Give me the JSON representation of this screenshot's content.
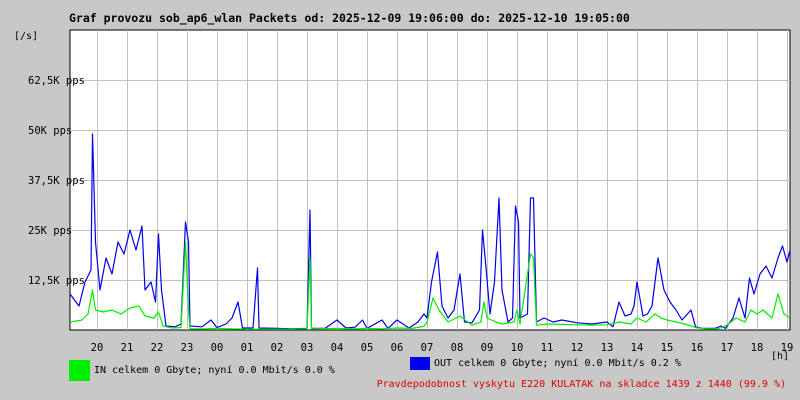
{
  "title": "Graf provozu sob_ap6_wlan Packets od: 2025-12-09 19:06:00 do: 2025-12-10 19:05:00",
  "y_unit": "[/s]",
  "x_unit": "[h]",
  "legend": {
    "in": {
      "label": "IN celkem 0 Gbyte; nyní   0.0 Mbit/s 0.0 %",
      "color": "#00ee00"
    },
    "out": {
      "label": "OUT celkem 0 Gbyte; nyní   0.0 Mbit/s 0.2 %",
      "color": "#0000ee"
    }
  },
  "footer": "Pravdepodobnost vyskytu E220 KULATAK na skladce 1439 z 1440 (99.9 %)",
  "chart_data": {
    "type": "line",
    "title": "Graf provozu sob_ap6_wlan Packets od: 2025-12-09 19:06:00 do: 2025-12-10 19:05:00",
    "xlabel": "[h]",
    "ylabel": "[/s]",
    "xlim": [
      19.1,
      43.1
    ],
    "ylim": [
      0,
      75000
    ],
    "grid": true,
    "x_ticks": [
      {
        "x": 20,
        "label": "20"
      },
      {
        "x": 21,
        "label": "21"
      },
      {
        "x": 22,
        "label": "22"
      },
      {
        "x": 23,
        "label": "23"
      },
      {
        "x": 24,
        "label": "00"
      },
      {
        "x": 25,
        "label": "01"
      },
      {
        "x": 26,
        "label": "02"
      },
      {
        "x": 27,
        "label": "03"
      },
      {
        "x": 28,
        "label": "04"
      },
      {
        "x": 29,
        "label": "05"
      },
      {
        "x": 30,
        "label": "06"
      },
      {
        "x": 31,
        "label": "07"
      },
      {
        "x": 32,
        "label": "08"
      },
      {
        "x": 33,
        "label": "09"
      },
      {
        "x": 34,
        "label": "10"
      },
      {
        "x": 35,
        "label": "11"
      },
      {
        "x": 36,
        "label": "12"
      },
      {
        "x": 37,
        "label": "13"
      },
      {
        "x": 38,
        "label": "14"
      },
      {
        "x": 39,
        "label": "15"
      },
      {
        "x": 40,
        "label": "16"
      },
      {
        "x": 41,
        "label": "17"
      },
      {
        "x": 42,
        "label": "18"
      },
      {
        "x": 43,
        "label": "19"
      }
    ],
    "y_ticks": [
      {
        "y": 12500,
        "label": "12,5K pps"
      },
      {
        "y": 25000,
        "label": "25K pps"
      },
      {
        "y": 37500,
        "label": "37,5K pps"
      },
      {
        "y": 50000,
        "label": "50K pps"
      },
      {
        "y": 62500,
        "label": "62,5K pps"
      }
    ],
    "series": [
      {
        "name": "OUT",
        "color": "#0000ee",
        "points": [
          [
            19.1,
            9000
          ],
          [
            19.4,
            6000
          ],
          [
            19.6,
            12000
          ],
          [
            19.8,
            15000
          ],
          [
            19.85,
            49000
          ],
          [
            19.95,
            22000
          ],
          [
            20.1,
            10000
          ],
          [
            20.3,
            18000
          ],
          [
            20.5,
            14000
          ],
          [
            20.7,
            22000
          ],
          [
            20.9,
            19000
          ],
          [
            21.1,
            25000
          ],
          [
            21.3,
            20000
          ],
          [
            21.5,
            26000
          ],
          [
            21.6,
            10000
          ],
          [
            21.8,
            12000
          ],
          [
            21.95,
            7000
          ],
          [
            22.05,
            24000
          ],
          [
            22.15,
            10000
          ],
          [
            22.3,
            1000
          ],
          [
            22.6,
            800
          ],
          [
            22.8,
            1500
          ],
          [
            22.95,
            27000
          ],
          [
            23.05,
            22000
          ],
          [
            23.1,
            1000
          ],
          [
            23.5,
            800
          ],
          [
            23.8,
            2500
          ],
          [
            24.0,
            600
          ],
          [
            24.3,
            1500
          ],
          [
            24.5,
            3000
          ],
          [
            24.7,
            7000
          ],
          [
            24.85,
            500
          ],
          [
            25.2,
            500
          ],
          [
            25.35,
            15500
          ],
          [
            25.4,
            500
          ],
          [
            26.0,
            400
          ],
          [
            26.5,
            300
          ],
          [
            27.0,
            400
          ],
          [
            27.1,
            30000
          ],
          [
            27.15,
            400
          ],
          [
            27.6,
            400
          ],
          [
            28.0,
            2500
          ],
          [
            28.3,
            500
          ],
          [
            28.6,
            700
          ],
          [
            28.85,
            2500
          ],
          [
            29.0,
            400
          ],
          [
            29.5,
            2500
          ],
          [
            29.7,
            400
          ],
          [
            30.0,
            2500
          ],
          [
            30.4,
            500
          ],
          [
            30.7,
            2000
          ],
          [
            30.9,
            4000
          ],
          [
            31.0,
            3000
          ],
          [
            31.15,
            12000
          ],
          [
            31.35,
            19500
          ],
          [
            31.5,
            6000
          ],
          [
            31.7,
            3000
          ],
          [
            31.9,
            5000
          ],
          [
            32.1,
            14000
          ],
          [
            32.25,
            2000
          ],
          [
            32.5,
            1800
          ],
          [
            32.75,
            5000
          ],
          [
            32.85,
            25000
          ],
          [
            32.95,
            17000
          ],
          [
            33.1,
            4000
          ],
          [
            33.25,
            12000
          ],
          [
            33.4,
            33000
          ],
          [
            33.5,
            10000
          ],
          [
            33.7,
            2000
          ],
          [
            33.85,
            3000
          ],
          [
            33.95,
            31000
          ],
          [
            34.05,
            27000
          ],
          [
            34.1,
            3000
          ],
          [
            34.35,
            4000
          ],
          [
            34.45,
            33000
          ],
          [
            34.55,
            33000
          ],
          [
            34.65,
            2000
          ],
          [
            34.9,
            3000
          ],
          [
            35.2,
            2000
          ],
          [
            35.5,
            2500
          ],
          [
            36.0,
            1800
          ],
          [
            36.5,
            1500
          ],
          [
            37.0,
            2000
          ],
          [
            37.2,
            800
          ],
          [
            37.4,
            7000
          ],
          [
            37.6,
            3500
          ],
          [
            37.8,
            4000
          ],
          [
            37.9,
            6000
          ],
          [
            38.0,
            12000
          ],
          [
            38.2,
            3500
          ],
          [
            38.35,
            4000
          ],
          [
            38.5,
            6000
          ],
          [
            38.7,
            18000
          ],
          [
            38.9,
            10000
          ],
          [
            39.1,
            7000
          ],
          [
            39.3,
            5000
          ],
          [
            39.5,
            2500
          ],
          [
            39.8,
            5000
          ],
          [
            39.95,
            800
          ],
          [
            40.2,
            400
          ],
          [
            40.6,
            400
          ],
          [
            40.8,
            1000
          ],
          [
            40.95,
            400
          ],
          [
            41.2,
            3000
          ],
          [
            41.4,
            8000
          ],
          [
            41.6,
            3000
          ],
          [
            41.75,
            13000
          ],
          [
            41.9,
            9000
          ],
          [
            42.1,
            14000
          ],
          [
            42.3,
            16000
          ],
          [
            42.5,
            13000
          ],
          [
            42.7,
            18000
          ],
          [
            42.85,
            21000
          ],
          [
            43.0,
            17000
          ],
          [
            43.1,
            20000
          ]
        ]
      },
      {
        "name": "IN",
        "color": "#00ee00",
        "points": [
          [
            19.1,
            2000
          ],
          [
            19.5,
            2500
          ],
          [
            19.7,
            4000
          ],
          [
            19.85,
            10000
          ],
          [
            19.95,
            5000
          ],
          [
            20.2,
            4500
          ],
          [
            20.5,
            5000
          ],
          [
            20.8,
            4000
          ],
          [
            21.1,
            5500
          ],
          [
            21.4,
            6000
          ],
          [
            21.6,
            3500
          ],
          [
            21.9,
            3000
          ],
          [
            22.05,
            4500
          ],
          [
            22.2,
            1000
          ],
          [
            22.5,
            500
          ],
          [
            22.8,
            600
          ],
          [
            22.95,
            22000
          ],
          [
            23.05,
            5000
          ],
          [
            23.1,
            300
          ],
          [
            23.6,
            300
          ],
          [
            24.0,
            400
          ],
          [
            24.5,
            300
          ],
          [
            25.0,
            200
          ],
          [
            25.5,
            200
          ],
          [
            26.0,
            200
          ],
          [
            26.5,
            200
          ],
          [
            27.0,
            300
          ],
          [
            27.1,
            18000
          ],
          [
            27.15,
            300
          ],
          [
            28.0,
            400
          ],
          [
            28.5,
            300
          ],
          [
            29.0,
            400
          ],
          [
            29.5,
            300
          ],
          [
            30.0,
            500
          ],
          [
            30.5,
            400
          ],
          [
            30.9,
            900
          ],
          [
            31.0,
            2000
          ],
          [
            31.2,
            8000
          ],
          [
            31.4,
            5000
          ],
          [
            31.7,
            2000
          ],
          [
            32.1,
            3500
          ],
          [
            32.5,
            1200
          ],
          [
            32.8,
            2000
          ],
          [
            32.9,
            7000
          ],
          [
            33.0,
            3000
          ],
          [
            33.3,
            2000
          ],
          [
            33.5,
            1500
          ],
          [
            33.9,
            2000
          ],
          [
            34.0,
            5000
          ],
          [
            34.1,
            1500
          ],
          [
            34.45,
            19000
          ],
          [
            34.55,
            18000
          ],
          [
            34.65,
            1200
          ],
          [
            35.0,
            1500
          ],
          [
            35.5,
            1400
          ],
          [
            36.0,
            1300
          ],
          [
            36.5,
            1200
          ],
          [
            37.0,
            1300
          ],
          [
            37.4,
            2000
          ],
          [
            37.8,
            1500
          ],
          [
            38.0,
            3000
          ],
          [
            38.3,
            2000
          ],
          [
            38.6,
            4000
          ],
          [
            38.8,
            3000
          ],
          [
            39.0,
            2500
          ],
          [
            39.3,
            2000
          ],
          [
            39.6,
            1500
          ],
          [
            39.95,
            600
          ],
          [
            40.3,
            300
          ],
          [
            40.7,
            300
          ],
          [
            41.0,
            1200
          ],
          [
            41.3,
            3000
          ],
          [
            41.6,
            2000
          ],
          [
            41.8,
            5000
          ],
          [
            42.0,
            4000
          ],
          [
            42.2,
            5000
          ],
          [
            42.5,
            3000
          ],
          [
            42.7,
            9000
          ],
          [
            42.9,
            4000
          ],
          [
            43.1,
            3000
          ]
        ]
      }
    ]
  }
}
